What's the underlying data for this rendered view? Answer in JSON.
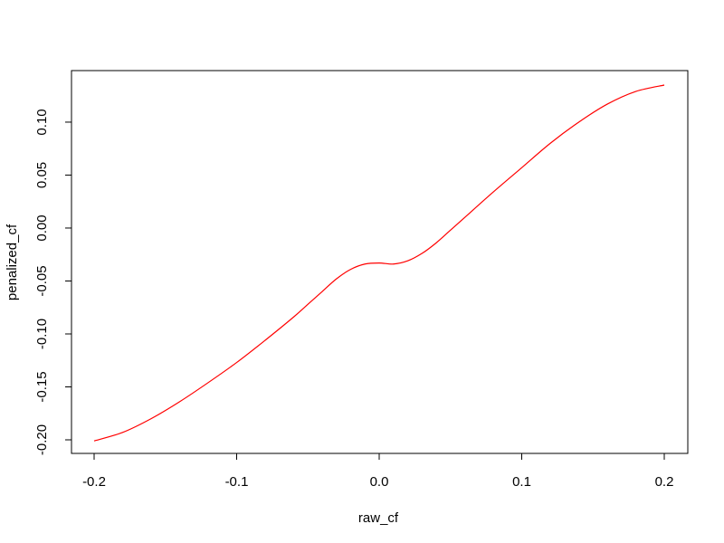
{
  "chart_data": {
    "type": "line",
    "title": "",
    "xlabel": "raw_cf",
    "ylabel": "penalized_cf",
    "xlim": [
      -0.2,
      0.2
    ],
    "ylim": [
      -0.2,
      0.135
    ],
    "x_ticks": [
      -0.2,
      -0.1,
      0.0,
      0.1,
      0.2
    ],
    "x_tick_labels": [
      "-0.2",
      "-0.1",
      "0.0",
      "0.1",
      "0.2"
    ],
    "y_ticks": [
      -0.2,
      -0.15,
      -0.1,
      -0.05,
      0.0,
      0.05,
      0.1
    ],
    "y_tick_labels": [
      "-0.20",
      "-0.15",
      "-0.10",
      "-0.05",
      "0.00",
      "0.05",
      "0.10"
    ],
    "grid": false,
    "legend": "none",
    "line_color": "#ff0000",
    "series": [
      {
        "x": [
          -0.2,
          -0.18,
          -0.16,
          -0.14,
          -0.12,
          -0.1,
          -0.08,
          -0.06,
          -0.05,
          -0.04,
          -0.03,
          -0.02,
          -0.01,
          0.0,
          0.01,
          0.02,
          0.03,
          0.04,
          0.05,
          0.06,
          0.08,
          0.1,
          0.12,
          0.14,
          0.16,
          0.18,
          0.2
        ],
        "y": [
          -0.201,
          -0.193,
          -0.18,
          -0.164,
          -0.146,
          -0.127,
          -0.106,
          -0.084,
          -0.072,
          -0.06,
          -0.048,
          -0.039,
          -0.034,
          -0.033,
          -0.034,
          -0.031,
          -0.024,
          -0.014,
          -0.002,
          0.01,
          0.034,
          0.057,
          0.08,
          0.1,
          0.117,
          0.129,
          0.135
        ]
      }
    ]
  }
}
